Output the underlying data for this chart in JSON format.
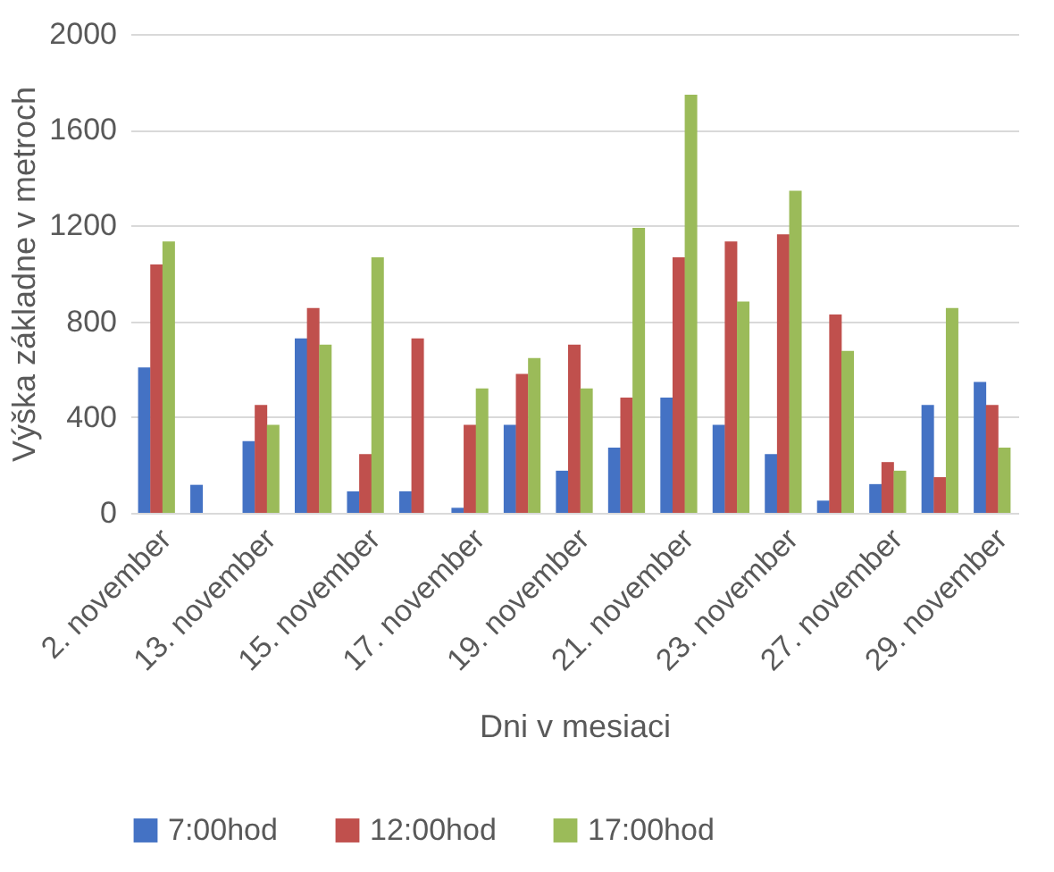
{
  "chart_data": {
    "type": "bar",
    "xlabel": "Dni v mesiaci",
    "ylabel": "Výška základne v metroch",
    "categories": [
      "2. november",
      null,
      "13. november",
      null,
      "15. november",
      null,
      "17. november",
      null,
      "19. november",
      null,
      "21. november",
      null,
      "23. november",
      null,
      "27. november",
      null,
      "29. november"
    ],
    "series": [
      {
        "name": "7:00hod",
        "color": "#4472c4",
        "values": [
          607,
          117,
          299,
          729,
          90,
          90,
          21,
          368,
          176,
          272,
          481,
          368,
          245,
          51,
          120,
          451,
          547
        ]
      },
      {
        "name": "12:00hod",
        "color": "#c0504d",
        "values": [
          1037,
          null,
          451,
          855,
          245,
          729,
          368,
          580,
          702,
          481,
          1067,
          1133,
          1163,
          828,
          212,
          149,
          451
        ]
      },
      {
        "name": "17:00hod",
        "color": "#9bbb59",
        "values": [
          1133,
          null,
          368,
          702,
          1067,
          null,
          520,
          646,
          520,
          1190,
          1746,
          882,
          1345,
          676,
          176,
          855,
          272
        ]
      }
    ],
    "ylim": [
      0,
      2000
    ],
    "yticks": [
      0,
      400,
      800,
      1200,
      1600,
      2000
    ],
    "grid": "y",
    "legend": "bottom"
  }
}
